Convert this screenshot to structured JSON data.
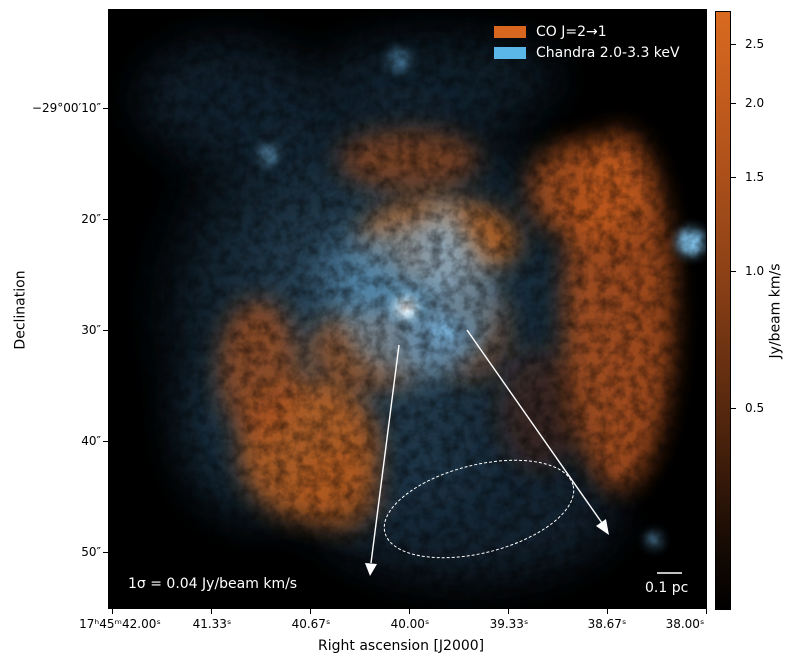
{
  "legend": [
    {
      "label": "CO J=2→1",
      "color": "#d9661f"
    },
    {
      "label": "Chandra 2.0-3.3 keV",
      "color": "#5bb7e8"
    }
  ],
  "annotation_sigma": "1σ = 0.04 Jy/beam km/s",
  "scalebar_label": "0.1 pc",
  "x_axis": {
    "title": "Right ascension [J2000]",
    "ticks": [
      "17ʰ45ᵐ42.00ˢ",
      "41.33ˢ",
      "40.67ˢ",
      "40.00ˢ",
      "39.33ˢ",
      "38.67ˢ",
      "38.00ˢ"
    ]
  },
  "y_axis": {
    "title": "Declination",
    "ticks": [
      "−29°00′10″",
      "20″",
      "30″",
      "40″",
      "50″"
    ]
  },
  "colorbar": {
    "title": "Jy/beam km/s",
    "ticks": [
      "2.5",
      "2.0",
      "1.5",
      "1.0",
      "0.5"
    ],
    "color_top": "#d96a1f",
    "color_bottom": "#000000"
  }
}
